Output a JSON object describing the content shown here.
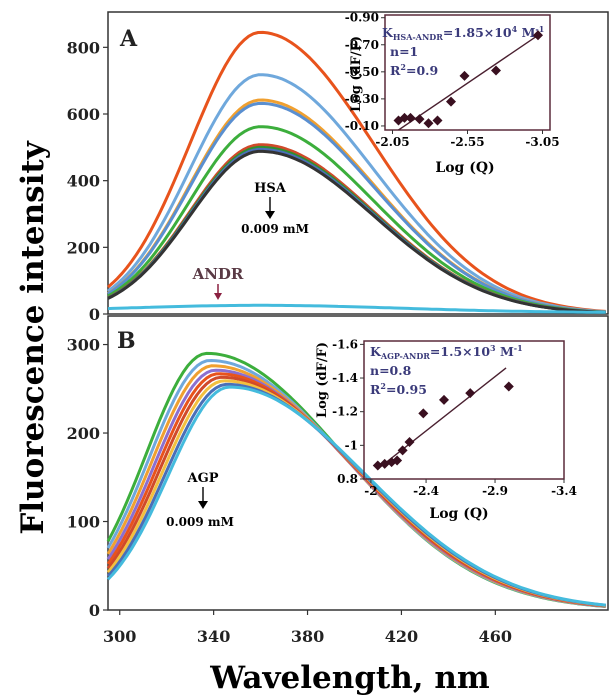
{
  "figure": {
    "ylabel": "Fluorescence intensity",
    "xlabel": "Wavelength, nm",
    "x_ticks": [
      "300",
      "340",
      "380",
      "420",
      "460"
    ]
  },
  "chart_data": [
    {
      "panel": "A",
      "type": "line",
      "xlim": [
        295,
        508
      ],
      "ylim": [
        0,
        900
      ],
      "y_ticks": [
        "0",
        "200",
        "400",
        "600",
        "800"
      ],
      "annotations": {
        "series_label": "HSA",
        "concentration": "0.009 mM",
        "ligand_label": "ANDR"
      },
      "peak_x": 360,
      "series": [
        {
          "color": "#e8531c",
          "peak": 845
        },
        {
          "color": "#6fa8dc",
          "peak": 718
        },
        {
          "color": "#f0a030",
          "peak": 642
        },
        {
          "color": "#5a8fd0",
          "peak": 632
        },
        {
          "color": "#3cae3c",
          "peak": 562
        },
        {
          "color": "#d04a2a",
          "peak": 508
        },
        {
          "color": "#2f8f2f",
          "peak": 500
        },
        {
          "color": "#4a6fb8",
          "peak": 494
        },
        {
          "color": "#333333",
          "peak": 488
        }
      ],
      "ligand_line": {
        "color": "#44bbdd",
        "peak": 22
      },
      "inset": {
        "title": "K",
        "title_sub": "HSA-ANDR",
        "title_val": "=1.85×10",
        "title_exp": "4",
        "title_unit": " M",
        "title_unit_exp": "-1",
        "n": "n=1",
        "r2_prefix": "R",
        "r2_exp": "2",
        "r2_val": "=0.9",
        "xlabel": "Log (Q)",
        "ylabel": "Log (dF/F)",
        "x_ticks": [
          "-2.05",
          "-2.55",
          "-3.05"
        ],
        "y_ticks": [
          "-0.90",
          "-0.70",
          "-0.50",
          "-0.30",
          "-0.10"
        ],
        "points": [
          {
            "x": -2.09,
            "y": -0.14
          },
          {
            "x": -2.13,
            "y": -0.16
          },
          {
            "x": -2.17,
            "y": -0.16
          },
          {
            "x": -2.23,
            "y": -0.15
          },
          {
            "x": -2.29,
            "y": -0.12
          },
          {
            "x": -2.35,
            "y": -0.14
          },
          {
            "x": -2.44,
            "y": -0.28
          },
          {
            "x": -2.53,
            "y": -0.47
          },
          {
            "x": -2.74,
            "y": -0.51
          },
          {
            "x": -3.02,
            "y": -0.77
          }
        ],
        "fit": [
          {
            "x": -2.09,
            "y": -0.07
          },
          {
            "x": -3.02,
            "y": -0.77
          }
        ]
      }
    },
    {
      "panel": "B",
      "type": "line",
      "xlim": [
        295,
        508
      ],
      "ylim": [
        0,
        330
      ],
      "y_ticks": [
        "0",
        "100",
        "200",
        "300"
      ],
      "annotations": {
        "series_label": "AGP",
        "concentration": "0.009 mM"
      },
      "peak_x": 342,
      "series": [
        {
          "color": "#3cae3c",
          "peak": 290
        },
        {
          "color": "#6fa8dc",
          "peak": 282
        },
        {
          "color": "#f0a030",
          "peak": 276
        },
        {
          "color": "#8b6fd0",
          "peak": 271
        },
        {
          "color": "#e8531c",
          "peak": 267
        },
        {
          "color": "#d04a2a",
          "peak": 263
        },
        {
          "color": "#f2c040",
          "peak": 259
        },
        {
          "color": "#4a6fb8",
          "peak": 255
        },
        {
          "color": "#44bbdd",
          "peak": 252
        }
      ],
      "inset": {
        "title": "K",
        "title_sub": "AGP-ANDR",
        "title_val": "=1.5×10",
        "title_exp": "3",
        "title_unit": " M",
        "title_unit_exp": "-1",
        "n": "n=0.8",
        "r2_prefix": "R",
        "r2_exp": "2",
        "r2_val": "=0.95",
        "xlabel": "Log (Q)",
        "ylabel": "Log (dF/F)",
        "x_ticks": [
          "-2",
          "-2.4",
          "-2.9",
          "-3.4"
        ],
        "y_ticks": [
          "-1.6",
          "-1.4",
          "-1.2",
          "-1",
          "0.8"
        ],
        "points": [
          {
            "x": -2.05,
            "y": -0.88
          },
          {
            "x": -2.1,
            "y": -0.89
          },
          {
            "x": -2.15,
            "y": -0.9
          },
          {
            "x": -2.19,
            "y": -0.91
          },
          {
            "x": -2.23,
            "y": -0.97
          },
          {
            "x": -2.28,
            "y": -1.02
          },
          {
            "x": -2.38,
            "y": -1.19
          },
          {
            "x": -2.53,
            "y": -1.27
          },
          {
            "x": -2.72,
            "y": -1.31
          },
          {
            "x": -3.0,
            "y": -1.35
          }
        ],
        "fit": [
          {
            "x": -2.05,
            "y": -0.86
          },
          {
            "x": -2.98,
            "y": -1.46
          }
        ]
      }
    }
  ]
}
